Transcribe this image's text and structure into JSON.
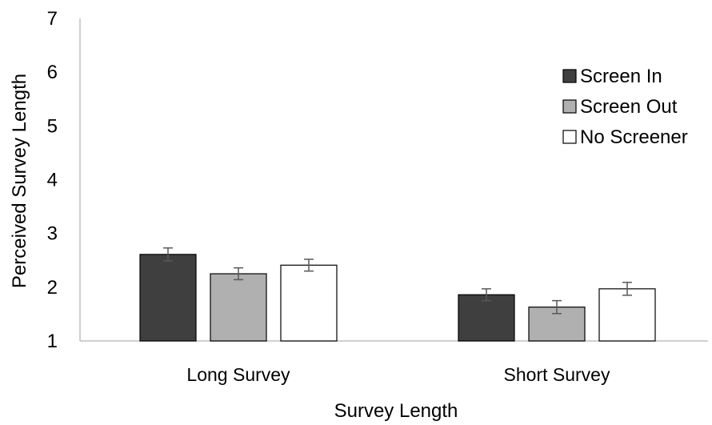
{
  "chart_data": {
    "type": "bar",
    "title": "",
    "xlabel": "Survey Length",
    "ylabel": "Perceived Survey Length",
    "ylim": [
      1,
      7
    ],
    "yticks": [
      "1",
      "2",
      "3",
      "4",
      "5",
      "6",
      "7"
    ],
    "categories": [
      "Long Survey",
      "Short Survey"
    ],
    "series": [
      {
        "name": "Screen In",
        "color": "#3f3f3f",
        "values": [
          2.61,
          1.86
        ],
        "errors": [
          0.12,
          0.11
        ]
      },
      {
        "name": "Screen Out",
        "color": "#b0b0b0",
        "values": [
          2.25,
          1.63
        ],
        "errors": [
          0.11,
          0.12
        ]
      },
      {
        "name": "No Screener",
        "color": "#ffffff",
        "values": [
          2.41,
          1.97
        ],
        "errors": [
          0.11,
          0.12
        ]
      }
    ],
    "grid": false,
    "legend_position": "right"
  }
}
